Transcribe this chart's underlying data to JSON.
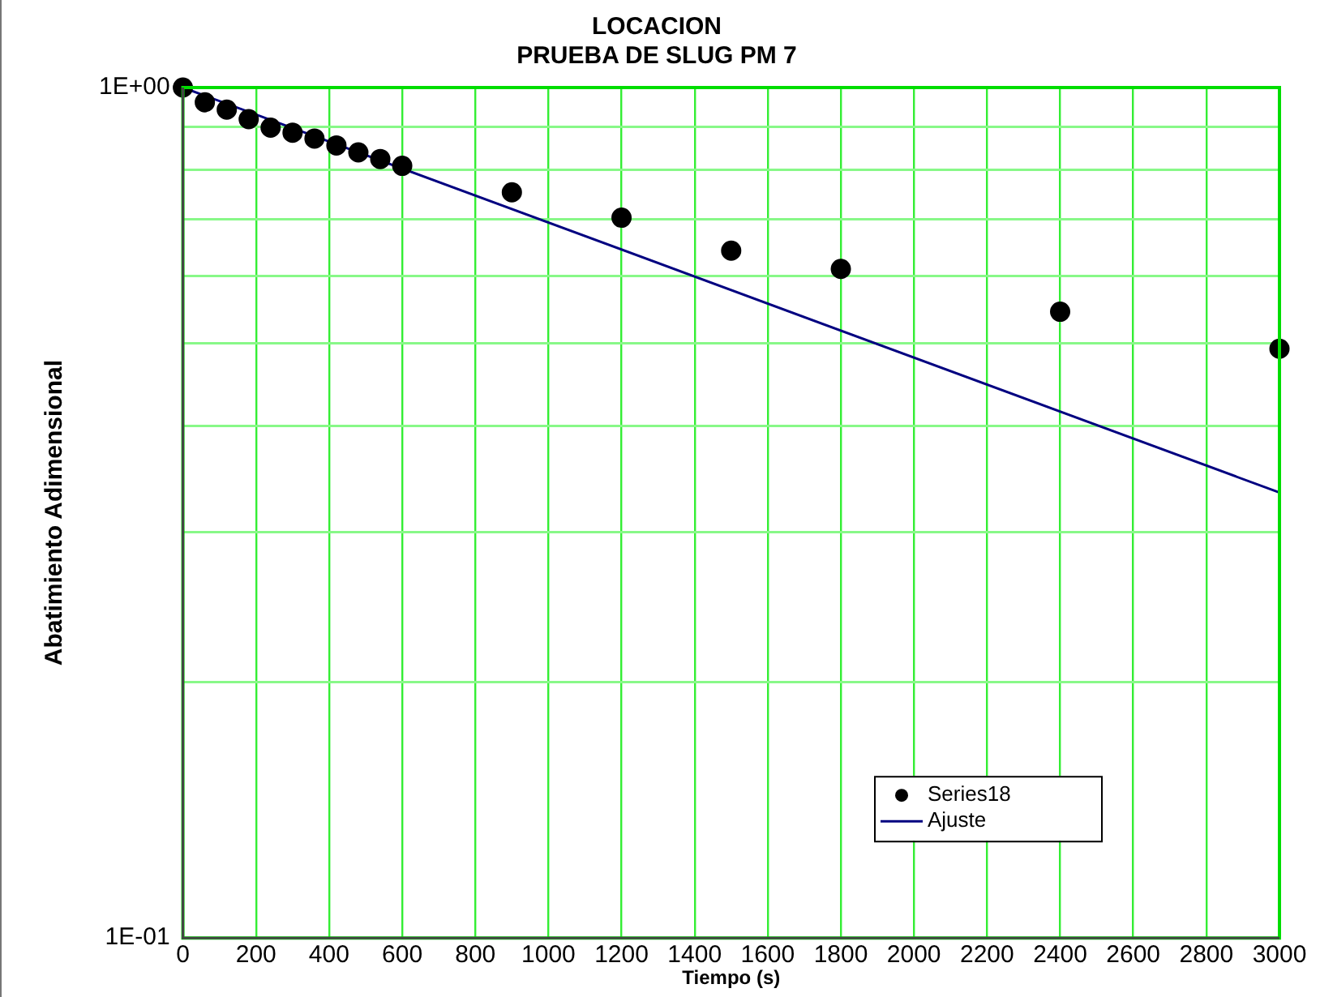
{
  "chart_data": {
    "type": "scatter",
    "title": "LOCACION",
    "subtitle": "PRUEBA DE SLUG PM 7",
    "xlabel": "Tiempo (s)",
    "ylabel": "Abatimiento Adimensional",
    "log": "y",
    "xlim": [
      0,
      3000
    ],
    "xticks": [
      0,
      200,
      400,
      600,
      800,
      1000,
      1200,
      1400,
      1600,
      1800,
      2000,
      2200,
      2400,
      2600,
      2800,
      3000
    ],
    "ylim": [
      0.1,
      1
    ],
    "yticks": [
      {
        "value": 0.1,
        "label": "1E-01"
      },
      {
        "value": 0.2,
        "label": null
      },
      {
        "value": 0.3,
        "label": null
      },
      {
        "value": 0.4,
        "label": null
      },
      {
        "value": 0.5,
        "label": null
      },
      {
        "value": 0.6,
        "label": null
      },
      {
        "value": 0.7,
        "label": null
      },
      {
        "value": 0.8,
        "label": null
      },
      {
        "value": 0.9,
        "label": null
      },
      {
        "value": 1,
        "label": "1E+00"
      }
    ],
    "grid": true,
    "legend": "bottom right",
    "series": [
      {
        "name": "Series18",
        "marker": "circle",
        "color": "#000000",
        "x": [
          0,
          60,
          120,
          180,
          240,
          300,
          360,
          420,
          480,
          540,
          600,
          900,
          1200,
          1500,
          1800,
          2400,
          3000
        ],
        "values": [
          1.0,
          0.961,
          0.942,
          0.918,
          0.897,
          0.885,
          0.871,
          0.855,
          0.839,
          0.824,
          0.809,
          0.753,
          0.703,
          0.643,
          0.612,
          0.545,
          0.493
        ]
      },
      {
        "name": "Ajuste",
        "type": "line",
        "marker": "none",
        "color": "#000080",
        "x": [
          0,
          3000
        ],
        "values": [
          1.0,
          0.334
        ]
      }
    ]
  }
}
